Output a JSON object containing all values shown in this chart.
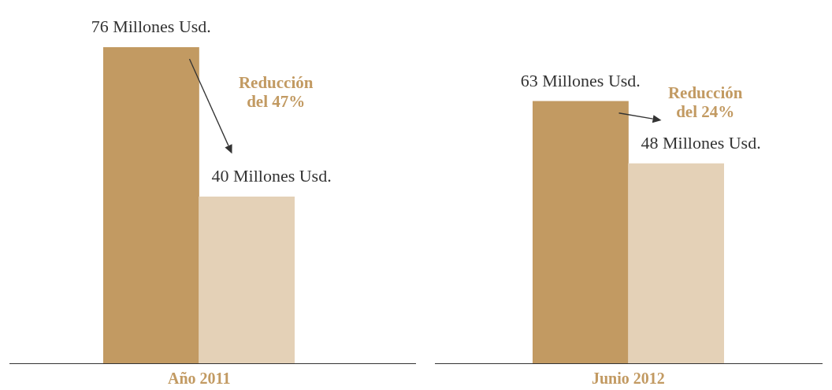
{
  "chart_data": [
    {
      "type": "bar",
      "categories": [
        null,
        null
      ],
      "values": [
        76,
        40
      ],
      "colors": [
        "#c29a62",
        "#e4d1b7"
      ],
      "value_labels": [
        "76 Millones Usd.",
        "40 Millones Usd."
      ],
      "xlabel": "Año 2011",
      "annotations": [
        "Reducción del 47%"
      ],
      "tick_labels": false,
      "grid": false,
      "legend": false
    },
    {
      "type": "bar",
      "categories": [
        null,
        null
      ],
      "values": [
        63,
        48
      ],
      "colors": [
        "#c29a62",
        "#e4d1b7"
      ],
      "value_labels": [
        "63 Millones Usd.",
        "48 Millones Usd."
      ],
      "xlabel": "Junio 2012",
      "annotations": [
        "Reducción del 24%"
      ],
      "tick_labels": false,
      "grid": false,
      "legend": false
    }
  ]
}
